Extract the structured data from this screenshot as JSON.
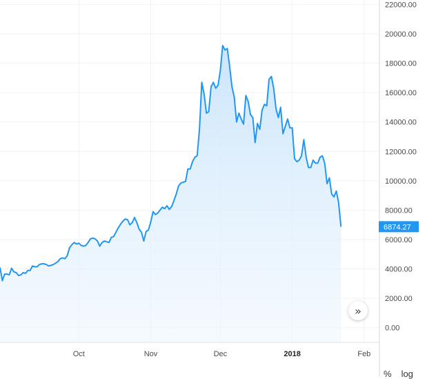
{
  "chart_data": {
    "type": "area",
    "title": "",
    "xlabel": "",
    "ylabel": "",
    "ylim": [
      -1000,
      22300
    ],
    "y_ticks": [
      "22000.00",
      "20000.00",
      "18000.00",
      "16000.00",
      "14000.00",
      "12000.00",
      "10000.00",
      "8000.00",
      "6000.00",
      "4000.00",
      "2000.00",
      "0.00"
    ],
    "y_tick_values": [
      22000,
      20000,
      18000,
      16000,
      14000,
      12000,
      10000,
      8000,
      6000,
      4000,
      2000,
      0
    ],
    "x_ticks": [
      {
        "label": "Oct",
        "date": "2017-10-01",
        "bold": false
      },
      {
        "label": "Nov",
        "date": "2017-11-01",
        "bold": false
      },
      {
        "label": "Dec",
        "date": "2017-12-01",
        "bold": false
      },
      {
        "label": "2018",
        "date": "2018-01-01",
        "bold": true
      },
      {
        "label": "Feb",
        "date": "2018-02-01",
        "bold": false
      }
    ],
    "x_range": [
      "2017-08-28",
      "2018-02-07"
    ],
    "last_value_label": "6874.27",
    "line_color": "#2196f3",
    "fill_color": "#d4ebfc",
    "grid": true,
    "series": [
      {
        "values": [
          [
            "2017-08-28",
            4100
          ],
          [
            "2017-08-29",
            3200
          ],
          [
            "2017-08-30",
            3650
          ],
          [
            "2017-08-31",
            3650
          ],
          [
            "2017-09-01",
            3600
          ],
          [
            "2017-09-02",
            4050
          ],
          [
            "2017-09-03",
            3800
          ],
          [
            "2017-09-04",
            3750
          ],
          [
            "2017-09-05",
            3550
          ],
          [
            "2017-09-06",
            3600
          ],
          [
            "2017-09-07",
            3750
          ],
          [
            "2017-09-08",
            3700
          ],
          [
            "2017-09-09",
            3900
          ],
          [
            "2017-09-10",
            3900
          ],
          [
            "2017-09-11",
            4200
          ],
          [
            "2017-09-12",
            4150
          ],
          [
            "2017-09-13",
            4150
          ],
          [
            "2017-09-14",
            4300
          ],
          [
            "2017-09-15",
            4350
          ],
          [
            "2017-09-16",
            4350
          ],
          [
            "2017-09-17",
            4300
          ],
          [
            "2017-09-18",
            4200
          ],
          [
            "2017-09-19",
            4250
          ],
          [
            "2017-09-20",
            4300
          ],
          [
            "2017-09-21",
            4400
          ],
          [
            "2017-09-22",
            4500
          ],
          [
            "2017-09-23",
            4700
          ],
          [
            "2017-09-24",
            4750
          ],
          [
            "2017-09-25",
            4700
          ],
          [
            "2017-09-26",
            4900
          ],
          [
            "2017-09-27",
            5450
          ],
          [
            "2017-09-28",
            5650
          ],
          [
            "2017-09-29",
            5800
          ],
          [
            "2017-09-30",
            5700
          ],
          [
            "2017-10-01",
            5750
          ],
          [
            "2017-10-02",
            5600
          ],
          [
            "2017-10-03",
            5550
          ],
          [
            "2017-10-04",
            5600
          ],
          [
            "2017-10-05",
            5800
          ],
          [
            "2017-10-06",
            6050
          ],
          [
            "2017-10-07",
            6100
          ],
          [
            "2017-10-08",
            6050
          ],
          [
            "2017-10-09",
            5900
          ],
          [
            "2017-10-10",
            5550
          ],
          [
            "2017-10-11",
            5800
          ],
          [
            "2017-10-12",
            5900
          ],
          [
            "2017-10-13",
            5850
          ],
          [
            "2017-10-14",
            5800
          ],
          [
            "2017-10-15",
            6150
          ],
          [
            "2017-10-16",
            6200
          ],
          [
            "2017-10-17",
            6500
          ],
          [
            "2017-10-18",
            6800
          ],
          [
            "2017-10-19",
            7050
          ],
          [
            "2017-10-20",
            7250
          ],
          [
            "2017-10-21",
            7400
          ],
          [
            "2017-10-22",
            7350
          ],
          [
            "2017-10-23",
            7000
          ],
          [
            "2017-10-24",
            7150
          ],
          [
            "2017-10-25",
            7500
          ],
          [
            "2017-10-26",
            7150
          ],
          [
            "2017-10-27",
            6700
          ],
          [
            "2017-10-28",
            6500
          ],
          [
            "2017-10-29",
            5900
          ],
          [
            "2017-10-30",
            6550
          ],
          [
            "2017-10-31",
            6650
          ],
          [
            "2017-11-01",
            7200
          ],
          [
            "2017-11-02",
            7900
          ],
          [
            "2017-11-03",
            7700
          ],
          [
            "2017-11-04",
            7800
          ],
          [
            "2017-11-05",
            8000
          ],
          [
            "2017-11-06",
            8200
          ],
          [
            "2017-11-07",
            8100
          ],
          [
            "2017-11-08",
            8300
          ],
          [
            "2017-11-09",
            8050
          ],
          [
            "2017-11-10",
            8250
          ],
          [
            "2017-11-11",
            8650
          ],
          [
            "2017-11-12",
            9100
          ],
          [
            "2017-11-13",
            9650
          ],
          [
            "2017-11-14",
            9850
          ],
          [
            "2017-11-15",
            9900
          ],
          [
            "2017-11-16",
            9950
          ],
          [
            "2017-11-17",
            10800
          ],
          [
            "2017-11-18",
            10800
          ],
          [
            "2017-11-19",
            11300
          ],
          [
            "2017-11-20",
            11600
          ],
          [
            "2017-11-21",
            11700
          ],
          [
            "2017-11-22",
            13500
          ],
          [
            "2017-11-23",
            16700
          ],
          [
            "2017-11-24",
            15900
          ],
          [
            "2017-11-25",
            14600
          ],
          [
            "2017-11-26",
            14700
          ],
          [
            "2017-11-27",
            16400
          ],
          [
            "2017-11-28",
            16700
          ],
          [
            "2017-11-29",
            16300
          ],
          [
            "2017-11-30",
            16500
          ],
          [
            "2017-12-01",
            17500
          ],
          [
            "2017-12-02",
            19200
          ],
          [
            "2017-12-03",
            18900
          ],
          [
            "2017-12-04",
            19000
          ],
          [
            "2017-12-05",
            17800
          ],
          [
            "2017-12-06",
            16400
          ],
          [
            "2017-12-07",
            15700
          ],
          [
            "2017-12-08",
            14000
          ],
          [
            "2017-12-09",
            14600
          ],
          [
            "2017-12-10",
            14200
          ],
          [
            "2017-12-11",
            13850
          ],
          [
            "2017-12-12",
            15800
          ],
          [
            "2017-12-13",
            15400
          ],
          [
            "2017-12-14",
            14500
          ],
          [
            "2017-12-15",
            14300
          ],
          [
            "2017-12-16",
            12600
          ],
          [
            "2017-12-17",
            13900
          ],
          [
            "2017-12-18",
            13500
          ],
          [
            "2017-12-19",
            14800
          ],
          [
            "2017-12-20",
            15200
          ],
          [
            "2017-12-21",
            15100
          ],
          [
            "2017-12-22",
            16900
          ],
          [
            "2017-12-23",
            17100
          ],
          [
            "2017-12-24",
            16300
          ],
          [
            "2017-12-25",
            14900
          ],
          [
            "2017-12-26",
            14300
          ],
          [
            "2017-12-27",
            15000
          ],
          [
            "2017-12-28",
            13200
          ],
          [
            "2017-12-29",
            13700
          ],
          [
            "2017-12-30",
            14200
          ],
          [
            "2017-12-31",
            13600
          ],
          [
            "2018-01-01",
            13600
          ],
          [
            "2018-01-02",
            11500
          ],
          [
            "2018-01-03",
            11300
          ],
          [
            "2018-01-04",
            11400
          ],
          [
            "2018-01-05",
            11700
          ],
          [
            "2018-01-06",
            12800
          ],
          [
            "2018-01-07",
            11600
          ],
          [
            "2018-01-08",
            10900
          ],
          [
            "2018-01-09",
            10900
          ],
          [
            "2018-01-10",
            11400
          ],
          [
            "2018-01-11",
            11200
          ],
          [
            "2018-01-12",
            11200
          ],
          [
            "2018-01-13",
            11600
          ],
          [
            "2018-01-14",
            11700
          ],
          [
            "2018-01-15",
            11200
          ],
          [
            "2018-01-16",
            9800
          ],
          [
            "2018-01-17",
            10200
          ],
          [
            "2018-01-18",
            9100
          ],
          [
            "2018-01-19",
            8900
          ],
          [
            "2018-01-20",
            9300
          ],
          [
            "2018-01-21",
            8500
          ],
          [
            "2018-01-22",
            6874.27
          ]
        ]
      }
    ]
  },
  "controls": {
    "scroll_icon": "double-chevron-right-icon",
    "scroll_glyph": "»",
    "percent_label": "%",
    "log_label": "log"
  }
}
